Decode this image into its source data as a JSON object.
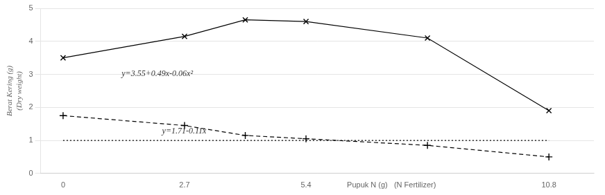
{
  "chart_data": {
    "type": "line",
    "x": [
      0,
      2.7,
      4.05,
      5.4,
      8.1,
      10.8
    ],
    "series": [
      {
        "color": "black",
        "values": [
          3.5,
          4.15,
          4.65,
          4.6,
          4.1,
          1.9
        ],
        "marker": "x",
        "line_style": "solid"
      },
      {
        "color": "black",
        "values": [
          1.75,
          1.45,
          1.15,
          1.05,
          0.85,
          0.5
        ],
        "marker": "+",
        "line_style": "dashed"
      },
      {
        "color": "black",
        "x": [
          0,
          10.8
        ],
        "values": [
          1.0,
          1.0
        ],
        "marker": "none",
        "line_style": "dotted"
      }
    ],
    "ylabel": [
      "Berat Kering (g)",
      "(Dry weight)"
    ],
    "annotations": [
      {
        "text": "y=3.55+0.49x-0.06x²",
        "x": 1.3,
        "y": 2.95
      },
      {
        "text": "y=1.71-0.11x",
        "x": 2.2,
        "y": 1.22
      }
    ],
    "xlim": [
      -0.5,
      11.8
    ],
    "ylim": [
      0,
      5
    ],
    "xticks": [
      0,
      2.7,
      5.4,
      {
        "value": 7.3,
        "label": "Pupuk N (g)   (N Fertilizer)"
      },
      10.8
    ],
    "yticks": [
      0,
      1,
      2,
      3,
      4,
      5
    ],
    "grid": "y"
  }
}
